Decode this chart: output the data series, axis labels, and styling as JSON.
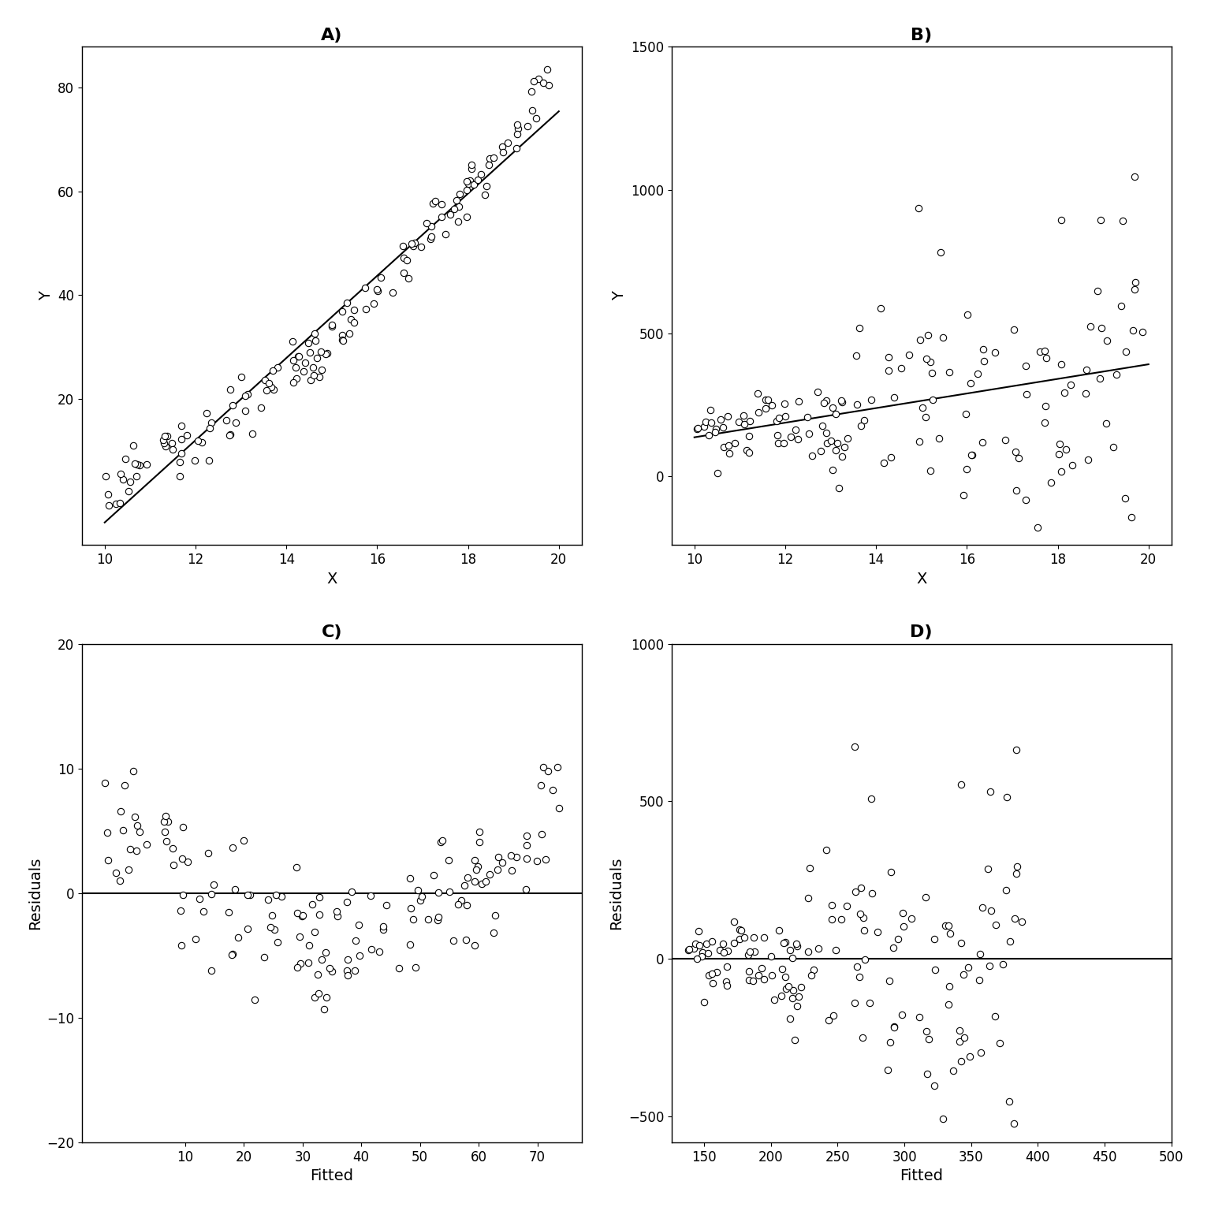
{
  "panel_titles": [
    "A)",
    "B)",
    "C)",
    "D)"
  ],
  "xlabel_AB": "X",
  "ylabel_AB": "Y",
  "xlabel_CD": "Fitted",
  "ylabel_CD": "Residuals",
  "title_fontsize": 16,
  "label_fontsize": 14,
  "tick_fontsize": 12,
  "marker_facecolor": "white",
  "marker_edgecolor": "black",
  "marker_size": 36,
  "marker_linewidth": 0.8,
  "line_color": "black",
  "line_width": 1.5,
  "background_color": "white",
  "figsize": [
    15.36,
    15.36
  ],
  "dpi": 100,
  "panel_A": {
    "xlim": [
      9.5,
      20.5
    ],
    "xticks": [
      10,
      12,
      14,
      16,
      18,
      20
    ],
    "yticks": [
      20,
      40,
      60,
      80
    ],
    "ylim_bottom": 5
  },
  "panel_B": {
    "xlim": [
      9.5,
      20.5
    ],
    "xticks": [
      10,
      12,
      14,
      16,
      18,
      20
    ],
    "yticks": [
      0,
      500,
      1000,
      1500
    ]
  },
  "panel_C": {
    "xticks": [
      10,
      20,
      30,
      40,
      50,
      60,
      70
    ],
    "yticks": [
      -20,
      -10,
      0,
      10,
      20
    ]
  },
  "panel_D": {
    "xticks": [
      150,
      200,
      250,
      300,
      350,
      400,
      450,
      500
    ],
    "yticks": [
      -500,
      0,
      500,
      1000
    ]
  }
}
